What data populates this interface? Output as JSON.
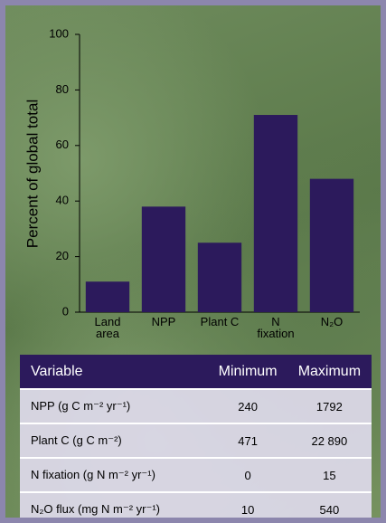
{
  "chart_data": {
    "type": "bar",
    "ylabel": "Percent of global total",
    "categories": [
      "Land\narea",
      "NPP",
      "Plant C",
      "N\nfixation",
      "N₂O"
    ],
    "values": [
      11,
      38,
      25,
      71,
      48
    ],
    "color": "#2c1a5c",
    "ylim": [
      0,
      100
    ],
    "yticks": [
      0,
      20,
      40,
      60,
      80,
      100
    ]
  },
  "table": {
    "header": [
      "Variable",
      "Minimum",
      "Maximum"
    ],
    "rows": [
      [
        "NPP (g C m⁻² yr⁻¹)",
        "240",
        "1792"
      ],
      [
        "Plant C (g C m⁻²)",
        "471",
        "22 890"
      ],
      [
        "N fixation (g N m⁻² yr⁻¹)",
        "0",
        "15"
      ],
      [
        "N₂O flux (mg N m⁻² yr⁻¹)",
        "10",
        "540"
      ]
    ]
  }
}
